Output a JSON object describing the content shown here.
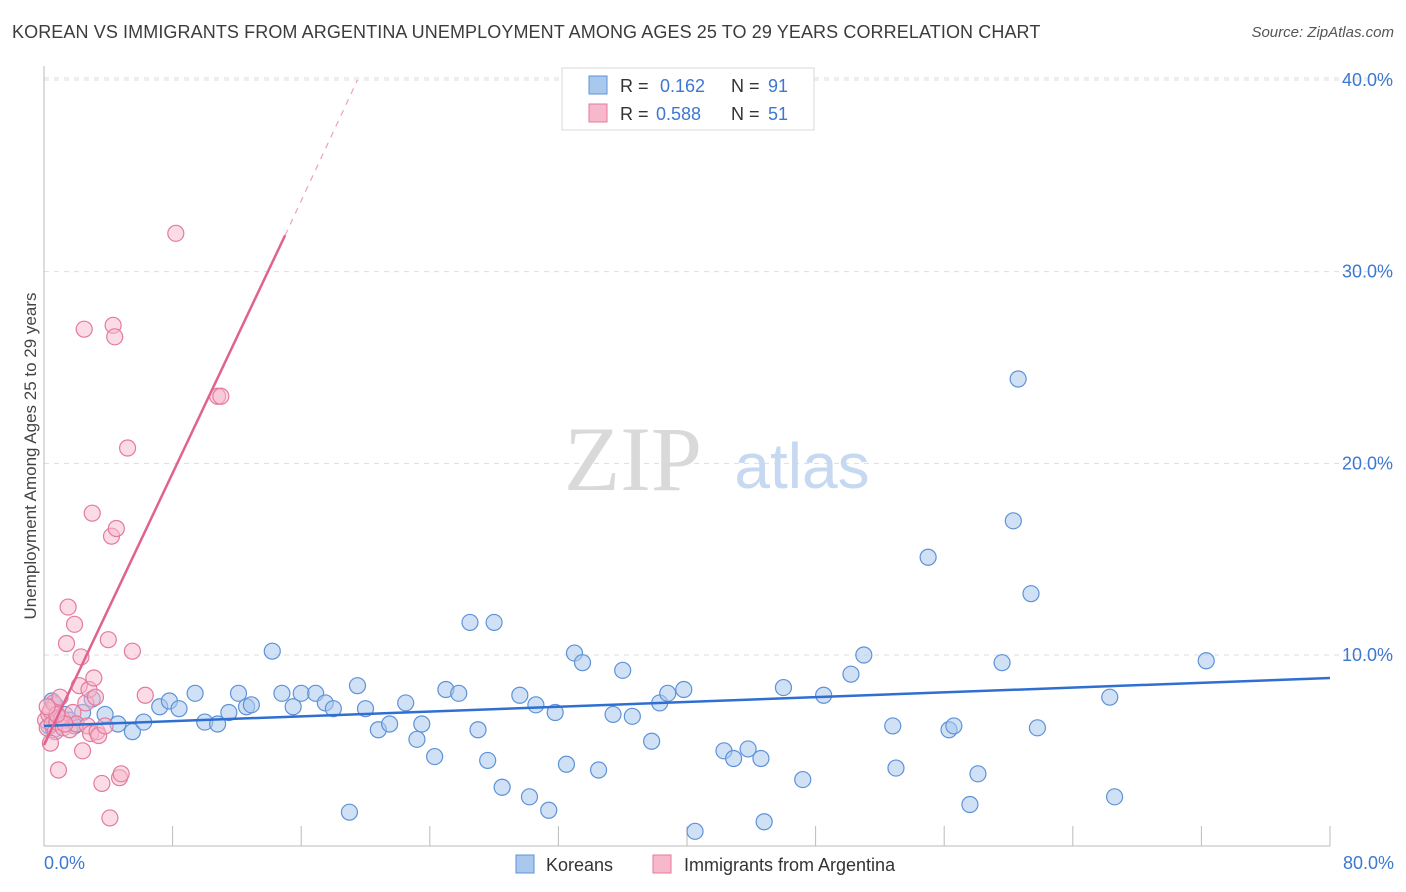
{
  "chart_data": {
    "type": "scatter",
    "title": "KOREAN VS IMMIGRANTS FROM ARGENTINA UNEMPLOYMENT AMONG AGES 25 TO 29 YEARS CORRELATION CHART",
    "source": "Source: ZipAtlas.com",
    "ylabel": "Unemployment Among Ages 25 to 29 years",
    "xlim": [
      0,
      80
    ],
    "ylim": [
      0,
      41
    ],
    "x_tick_labels": [
      "0.0%",
      "80.0%"
    ],
    "y_ticks": [
      10,
      20,
      30,
      40
    ],
    "y_tick_labels": [
      "10.0%",
      "20.0%",
      "30.0%",
      "40.0%"
    ],
    "watermark": {
      "zip": "ZIP",
      "atlas": "atlas"
    },
    "colors": {
      "koreans_fill": "#a9c8ee",
      "koreans_stroke": "#5d92d8",
      "koreans_line": "#2f6fd1",
      "argentina_fill": "#f7b8cc",
      "argentina_stroke": "#e47a9e",
      "argentina_line": "#e0628f",
      "tick_text": "#3d78d0",
      "grid": "#dddddd"
    },
    "legend": {
      "rows": [
        {
          "r_label": "R =",
          "r_value": "0.162",
          "n_label": "N =",
          "n_value": "91"
        },
        {
          "r_label": "R =",
          "r_value": "0.588",
          "n_label": "N =",
          "n_value": "51"
        }
      ]
    },
    "bottom_legend": [
      "Koreans",
      "Immigrants from Argentina"
    ],
    "series": [
      {
        "name": "Koreans",
        "trend": {
          "x0": 0,
          "y0": 6.3,
          "x1": 80,
          "y1": 8.8
        },
        "points": [
          [
            0.3,
            6.3
          ],
          [
            0.5,
            7.6
          ],
          [
            0.6,
            6.1
          ],
          [
            0.8,
            6.8
          ],
          [
            1.0,
            6.5
          ],
          [
            1.3,
            6.9
          ],
          [
            1.6,
            6.6
          ],
          [
            2.0,
            6.4
          ],
          [
            2.4,
            7.0
          ],
          [
            3.0,
            7.7
          ],
          [
            3.8,
            6.9
          ],
          [
            4.6,
            6.4
          ],
          [
            5.5,
            6.0
          ],
          [
            6.2,
            6.5
          ],
          [
            7.2,
            7.3
          ],
          [
            7.8,
            7.6
          ],
          [
            8.4,
            7.2
          ],
          [
            9.4,
            8.0
          ],
          [
            10.0,
            6.5
          ],
          [
            10.8,
            6.4
          ],
          [
            11.5,
            7.0
          ],
          [
            12.1,
            8.0
          ],
          [
            12.6,
            7.3
          ],
          [
            12.9,
            7.4
          ],
          [
            14.2,
            10.2
          ],
          [
            14.8,
            8.0
          ],
          [
            15.5,
            7.3
          ],
          [
            16.0,
            8.0
          ],
          [
            16.9,
            8.0
          ],
          [
            17.5,
            7.5
          ],
          [
            18.0,
            7.2
          ],
          [
            19.0,
            1.8
          ],
          [
            19.5,
            8.4
          ],
          [
            20.0,
            7.2
          ],
          [
            20.8,
            6.1
          ],
          [
            21.5,
            6.4
          ],
          [
            22.5,
            7.5
          ],
          [
            23.2,
            5.6
          ],
          [
            23.5,
            6.4
          ],
          [
            24.3,
            4.7
          ],
          [
            25.0,
            8.2
          ],
          [
            25.8,
            8.0
          ],
          [
            26.5,
            11.7
          ],
          [
            27.0,
            6.1
          ],
          [
            27.6,
            4.5
          ],
          [
            28.0,
            11.7
          ],
          [
            28.5,
            3.1
          ],
          [
            29.6,
            7.9
          ],
          [
            30.2,
            2.6
          ],
          [
            30.6,
            7.4
          ],
          [
            31.4,
            1.9
          ],
          [
            31.8,
            7.0
          ],
          [
            32.5,
            4.3
          ],
          [
            33.0,
            10.1
          ],
          [
            33.5,
            9.6
          ],
          [
            34.5,
            4.0
          ],
          [
            35.4,
            6.9
          ],
          [
            36.0,
            9.2
          ],
          [
            36.6,
            6.8
          ],
          [
            37.8,
            5.5
          ],
          [
            38.3,
            7.5
          ],
          [
            38.8,
            8.0
          ],
          [
            39.8,
            8.2
          ],
          [
            40.5,
            0.8
          ],
          [
            42.3,
            5.0
          ],
          [
            42.9,
            4.6
          ],
          [
            43.8,
            5.1
          ],
          [
            44.6,
            4.6
          ],
          [
            44.8,
            1.3
          ],
          [
            46.0,
            8.3
          ],
          [
            47.2,
            3.5
          ],
          [
            48.5,
            7.9
          ],
          [
            50.2,
            9.0
          ],
          [
            51.0,
            10.0
          ],
          [
            52.8,
            6.3
          ],
          [
            53.0,
            4.1
          ],
          [
            55.0,
            15.1
          ],
          [
            56.3,
            6.1
          ],
          [
            56.6,
            6.3
          ],
          [
            57.6,
            2.2
          ],
          [
            58.1,
            3.8
          ],
          [
            59.6,
            9.6
          ],
          [
            60.3,
            17.0
          ],
          [
            60.6,
            24.4
          ],
          [
            61.4,
            13.2
          ],
          [
            61.8,
            6.2
          ],
          [
            66.3,
            7.8
          ],
          [
            66.6,
            2.6
          ],
          [
            72.3,
            9.7
          ],
          [
            0.7,
            7.4
          ],
          [
            1.9,
            6.3
          ]
        ]
      },
      {
        "name": "Immigrants from Argentina",
        "trend": {
          "x0": 0,
          "y0": 5.3,
          "x1": 15.0,
          "y1": 31.9
        },
        "trend_dashed": {
          "x0": 15.0,
          "y0": 31.9,
          "x1": 19.5,
          "y1": 40.0
        },
        "points": [
          [
            0.1,
            6.6
          ],
          [
            0.2,
            6.2
          ],
          [
            0.3,
            6.9
          ],
          [
            0.4,
            7.1
          ],
          [
            0.5,
            6.4
          ],
          [
            0.6,
            7.5
          ],
          [
            0.7,
            6.0
          ],
          [
            0.8,
            6.5
          ],
          [
            0.9,
            4.0
          ],
          [
            1.0,
            7.8
          ],
          [
            1.1,
            6.7
          ],
          [
            1.2,
            6.2
          ],
          [
            1.4,
            10.6
          ],
          [
            1.5,
            12.5
          ],
          [
            1.6,
            6.1
          ],
          [
            1.8,
            7.0
          ],
          [
            1.9,
            11.6
          ],
          [
            2.0,
            6.4
          ],
          [
            2.2,
            8.4
          ],
          [
            2.3,
            9.9
          ],
          [
            2.4,
            5.0
          ],
          [
            2.5,
            27.0
          ],
          [
            2.6,
            7.5
          ],
          [
            2.7,
            6.3
          ],
          [
            2.8,
            8.2
          ],
          [
            2.9,
            5.9
          ],
          [
            3.0,
            17.4
          ],
          [
            3.1,
            8.8
          ],
          [
            3.2,
            7.8
          ],
          [
            3.3,
            6.0
          ],
          [
            3.4,
            5.8
          ],
          [
            3.6,
            3.3
          ],
          [
            3.8,
            6.3
          ],
          [
            4.0,
            10.8
          ],
          [
            4.1,
            1.5
          ],
          [
            4.2,
            16.2
          ],
          [
            4.3,
            27.2
          ],
          [
            4.4,
            26.6
          ],
          [
            4.5,
            16.6
          ],
          [
            4.7,
            3.6
          ],
          [
            4.8,
            3.8
          ],
          [
            5.2,
            20.8
          ],
          [
            5.5,
            10.2
          ],
          [
            6.3,
            7.9
          ],
          [
            8.2,
            32.0
          ],
          [
            10.8,
            23.5
          ],
          [
            11.0,
            23.5
          ],
          [
            0.4,
            5.4
          ],
          [
            1.3,
            6.4
          ],
          [
            0.8,
            6.9
          ],
          [
            0.2,
            7.3
          ]
        ]
      }
    ]
  }
}
